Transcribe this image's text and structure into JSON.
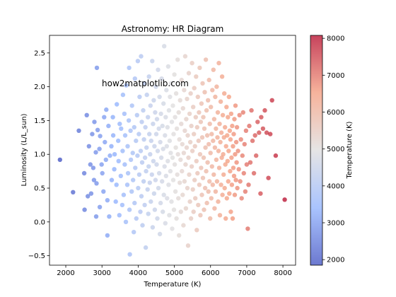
{
  "chart_data": {
    "type": "scatter",
    "title": "Astronomy: HR Diagram",
    "xlabel": "Temperature (K)",
    "ylabel": "Luminosity (L/L_sun)",
    "xlim": [
      1550,
      8350
    ],
    "ylim": [
      -0.64,
      2.76
    ],
    "xticks": [
      2000,
      3000,
      4000,
      5000,
      6000,
      7000,
      8000
    ],
    "yticks": [
      -0.5,
      0.0,
      0.5,
      1.0,
      1.5,
      2.0,
      2.5
    ],
    "grid": false,
    "annotation": "how2matplotlib.com",
    "colorbar": {
      "label": "Temperature (K)",
      "range": [
        1850,
        8080
      ],
      "ticks": [
        2000,
        3000,
        4000,
        5000,
        6000,
        7000,
        8000
      ],
      "colormap": "coolwarm",
      "stops": [
        "#3b4cc0",
        "#8db0fe",
        "#dddcdc",
        "#f49a7b",
        "#b40426"
      ],
      "alpha": 0.75
    },
    "points": [
      [
        1840,
        0.92
      ],
      [
        2200,
        0.44
      ],
      [
        2360,
        1.35
      ],
      [
        2510,
        0.72
      ],
      [
        2520,
        0.18
      ],
      [
        2580,
        1.58
      ],
      [
        2610,
        0.38
      ],
      [
        2640,
        1.12
      ],
      [
        2680,
        0.85
      ],
      [
        2700,
        0.42
      ],
      [
        2730,
        1.3
      ],
      [
        2760,
        0.8
      ],
      [
        2780,
        0.62
      ],
      [
        2790,
        1.48
      ],
      [
        2830,
        1.03
      ],
      [
        2840,
        0.08
      ],
      [
        2850,
        0.57
      ],
      [
        2860,
        2.28
      ],
      [
        2880,
        1.36
      ],
      [
        2930,
        1.08
      ],
      [
        2940,
        0.22
      ],
      [
        2950,
        1.27
      ],
      [
        2990,
        0.85
      ],
      [
        3010,
        0.72
      ],
      [
        3040,
        0.45
      ],
      [
        3060,
        1.55
      ],
      [
        3080,
        1.18
      ],
      [
        3110,
        0.92
      ],
      [
        3120,
        1.66
      ],
      [
        3150,
        0.32
      ],
      [
        3150,
        -0.2
      ],
      [
        3180,
        1.42
      ],
      [
        3200,
        0.08
      ],
      [
        3220,
        0.98
      ],
      [
        3260,
        1.12
      ],
      [
        3270,
        0.62
      ],
      [
        3300,
        1.55
      ],
      [
        3310,
        1.28
      ],
      [
        3340,
        0.78
      ],
      [
        3350,
        1.0
      ],
      [
        3380,
        0.3
      ],
      [
        3400,
        0.55
      ],
      [
        3410,
        1.74
      ],
      [
        3450,
        1.2
      ],
      [
        3460,
        0.9
      ],
      [
        3480,
        0.1
      ],
      [
        3490,
        1.45
      ],
      [
        3520,
        0.68
      ],
      [
        3530,
        1.38
      ],
      [
        3560,
        0.25
      ],
      [
        3570,
        1.05
      ],
      [
        3580,
        1.88
      ],
      [
        3600,
        0.4
      ],
      [
        3620,
        1.6
      ],
      [
        3630,
        0.85
      ],
      [
        3640,
        1.28
      ],
      [
        3660,
        0.0
      ],
      [
        3670,
        2.02
      ],
      [
        3700,
        0.55
      ],
      [
        3710,
        1.12
      ],
      [
        3720,
        0.72
      ],
      [
        3740,
        1.5
      ],
      [
        3750,
        2.28
      ],
      [
        3760,
        0.18
      ],
      [
        3770,
        -0.48
      ],
      [
        3790,
        1.35
      ],
      [
        3800,
        0.92
      ],
      [
        3820,
        0.45
      ],
      [
        3830,
        1.72
      ],
      [
        3850,
        1.02
      ],
      [
        3860,
        0.62
      ],
      [
        3880,
        -0.15
      ],
      [
        3890,
        1.4
      ],
      [
        3900,
        0.28
      ],
      [
        3910,
        2.12
      ],
      [
        3920,
        0.8
      ],
      [
        3940,
        1.2
      ],
      [
        3950,
        0.05
      ],
      [
        3970,
        1.58
      ],
      [
        3980,
        0.98
      ],
      [
        3990,
        2.38
      ],
      [
        4000,
        0.5
      ],
      [
        4020,
        1.3
      ],
      [
        4030,
        0.7
      ],
      [
        4040,
        1.85
      ],
      [
        4060,
        0.15
      ],
      [
        4070,
        1.05
      ],
      [
        4080,
        2.45
      ],
      [
        4090,
        0.38
      ],
      [
        4100,
        1.48
      ],
      [
        4110,
        0.88
      ],
      [
        4120,
        -0.05
      ],
      [
        4140,
        1.65
      ],
      [
        4150,
        0.6
      ],
      [
        4160,
        1.22
      ],
      [
        4170,
        2.05
      ],
      [
        4180,
        0.25
      ],
      [
        4190,
        0.95
      ],
      [
        4200,
        1.4
      ],
      [
        4210,
        -0.38
      ],
      [
        4220,
        0.75
      ],
      [
        4230,
        1.1
      ],
      [
        4240,
        1.88
      ],
      [
        4260,
        0.48
      ],
      [
        4270,
        1.55
      ],
      [
        4280,
        0.12
      ],
      [
        4290,
        0.82
      ],
      [
        4300,
        2.15
      ],
      [
        4310,
        1.3
      ],
      [
        4320,
        0.58
      ],
      [
        4330,
        1.0
      ],
      [
        4340,
        1.72
      ],
      [
        4350,
        0.3
      ],
      [
        4360,
        1.2
      ],
      [
        4380,
        0.7
      ],
      [
        4390,
        2.38
      ],
      [
        4400,
        -0.08
      ],
      [
        4410,
        1.45
      ],
      [
        4420,
        0.9
      ],
      [
        4430,
        1.8
      ],
      [
        4440,
        0.42
      ],
      [
        4450,
        1.12
      ],
      [
        4460,
        0.18
      ],
      [
        4470,
        1.62
      ],
      [
        4480,
        0.62
      ],
      [
        4490,
        2.0
      ],
      [
        4500,
        1.3
      ],
      [
        4510,
        0.85
      ],
      [
        4520,
        1.52
      ],
      [
        4530,
        0.05
      ],
      [
        4540,
        1.05
      ],
      [
        4550,
        2.25
      ],
      [
        4560,
        0.5
      ],
      [
        4570,
        1.38
      ],
      [
        4580,
        0.72
      ],
      [
        4590,
        1.85
      ],
      [
        4600,
        -0.18
      ],
      [
        4610,
        1.18
      ],
      [
        4620,
        0.28
      ],
      [
        4630,
        1.6
      ],
      [
        4640,
        0.95
      ],
      [
        4650,
        2.12
      ],
      [
        4660,
        0.6
      ],
      [
        4670,
        1.42
      ],
      [
        4680,
        0.15
      ],
      [
        4690,
        1.08
      ],
      [
        4700,
        1.75
      ],
      [
        4710,
        0.4
      ],
      [
        4720,
        2.6
      ],
      [
        4730,
        0.82
      ],
      [
        4740,
        1.28
      ],
      [
        4750,
        -0.02
      ],
      [
        4760,
        1.55
      ],
      [
        4770,
        0.68
      ],
      [
        4780,
        1.95
      ],
      [
        4790,
        1.12
      ],
      [
        4800,
        0.35
      ],
      [
        4810,
        1.4
      ],
      [
        4820,
        0.9
      ],
      [
        4830,
        2.3
      ],
      [
        4840,
        0.55
      ],
      [
        4850,
        1.65
      ],
      [
        4860,
        0.1
      ],
      [
        4870,
        1.2
      ],
      [
        4880,
        1.85
      ],
      [
        4890,
        0.75
      ],
      [
        4900,
        1.02
      ],
      [
        4910,
        2.05
      ],
      [
        4920,
        0.3
      ],
      [
        4930,
        1.48
      ],
      [
        4940,
        -0.1
      ],
      [
        4950,
        0.95
      ],
      [
        4960,
        1.72
      ],
      [
        4970,
        0.62
      ],
      [
        4980,
        1.3
      ],
      [
        4990,
        0.18
      ],
      [
        5000,
        2.18
      ],
      [
        5010,
        0.85
      ],
      [
        5020,
        1.55
      ],
      [
        5030,
        0.45
      ],
      [
        5040,
        1.1
      ],
      [
        5050,
        1.9
      ],
      [
        5060,
        0.05
      ],
      [
        5070,
        1.38
      ],
      [
        5080,
        0.7
      ],
      [
        5090,
        2.4
      ],
      [
        5100,
        1.0
      ],
      [
        5110,
        0.35
      ],
      [
        5120,
        1.62
      ],
      [
        5130,
        -0.2
      ],
      [
        5140,
        1.22
      ],
      [
        5150,
        0.58
      ],
      [
        5160,
        1.8
      ],
      [
        5170,
        0.92
      ],
      [
        5180,
        0.15
      ],
      [
        5190,
        1.45
      ],
      [
        5200,
        2.1
      ],
      [
        5210,
        0.75
      ],
      [
        5220,
        1.15
      ],
      [
        5230,
        0.4
      ],
      [
        5240,
        1.68
      ],
      [
        5250,
        -0.05
      ],
      [
        5260,
        1.02
      ],
      [
        5270,
        1.95
      ],
      [
        5280,
        0.6
      ],
      [
        5290,
        1.35
      ],
      [
        5300,
        2.45
      ],
      [
        5310,
        0.85
      ],
      [
        5320,
        0.2
      ],
      [
        5330,
        1.52
      ],
      [
        5340,
        1.1
      ],
      [
        5350,
        1.82
      ],
      [
        5360,
        0.5
      ],
      [
        5370,
        1.28
      ],
      [
        5380,
        -0.35
      ],
      [
        5390,
        0.95
      ],
      [
        5400,
        2.2
      ],
      [
        5410,
        0.7
      ],
      [
        5420,
        1.6
      ],
      [
        5430,
        0.3
      ],
      [
        5440,
        1.18
      ],
      [
        5450,
        1.9
      ],
      [
        5460,
        0.05
      ],
      [
        5470,
        1.42
      ],
      [
        5480,
        0.82
      ],
      [
        5490,
        2.35
      ],
      [
        5500,
        1.05
      ],
      [
        5510,
        0.48
      ],
      [
        5520,
        1.7
      ],
      [
        5530,
        0.15
      ],
      [
        5540,
        1.3
      ],
      [
        5550,
        1.98
      ],
      [
        5560,
        0.62
      ],
      [
        5570,
        1.12
      ],
      [
        5580,
        0.35
      ],
      [
        5590,
        1.55
      ],
      [
        5600,
        2.15
      ],
      [
        5610,
        0.9
      ],
      [
        5620,
        -0.12
      ],
      [
        5630,
        1.4
      ],
      [
        5640,
        0.72
      ],
      [
        5650,
        1.85
      ],
      [
        5660,
        0.25
      ],
      [
        5670,
        1.2
      ],
      [
        5680,
        1.62
      ],
      [
        5690,
        0.55
      ],
      [
        5700,
        2.28
      ],
      [
        5710,
        1.0
      ],
      [
        5720,
        0.1
      ],
      [
        5730,
        1.48
      ],
      [
        5740,
        0.8
      ],
      [
        5750,
        1.75
      ],
      [
        5760,
        0.4
      ],
      [
        5770,
        1.25
      ],
      [
        5780,
        2.05
      ],
      [
        5790,
        0.65
      ],
      [
        5800,
        1.55
      ],
      [
        5810,
        0.95
      ],
      [
        5820,
        0.18
      ],
      [
        5830,
        1.38
      ],
      [
        5840,
        1.92
      ],
      [
        5850,
        0.5
      ],
      [
        5860,
        1.1
      ],
      [
        5870,
        2.4
      ],
      [
        5880,
        0.75
      ],
      [
        5890,
        1.65
      ],
      [
        5900,
        0.28
      ],
      [
        5910,
        1.28
      ],
      [
        5920,
        0.88
      ],
      [
        5930,
        1.8
      ],
      [
        5940,
        0.45
      ],
      [
        5950,
        1.15
      ],
      [
        5960,
        2.1
      ],
      [
        5970,
        0.6
      ],
      [
        5980,
        1.45
      ],
      [
        5990,
        0.05
      ],
      [
        6000,
        1.02
      ],
      [
        6010,
        1.7
      ],
      [
        6020,
        0.35
      ],
      [
        6030,
        1.3
      ],
      [
        6040,
        0.82
      ],
      [
        6050,
        1.95
      ],
      [
        6060,
        0.55
      ],
      [
        6070,
        1.2
      ],
      [
        6080,
        2.25
      ],
      [
        6090,
        0.7
      ],
      [
        6100,
        1.52
      ],
      [
        6110,
        0.2
      ],
      [
        6120,
        1.1
      ],
      [
        6130,
        1.85
      ],
      [
        6140,
        0.45
      ],
      [
        6150,
        1.38
      ],
      [
        6160,
        0.92
      ],
      [
        6170,
        2.0
      ],
      [
        6180,
        0.6
      ],
      [
        6190,
        1.25
      ],
      [
        6200,
        1.62
      ],
      [
        6210,
        0.3
      ],
      [
        6220,
        1.05
      ],
      [
        6230,
        2.35
      ],
      [
        6240,
        0.8
      ],
      [
        6250,
        1.45
      ],
      [
        6260,
        0.1
      ],
      [
        6270,
        1.18
      ],
      [
        6280,
        1.78
      ],
      [
        6290,
        0.55
      ],
      [
        6300,
        1.32
      ],
      [
        6310,
        0.95
      ],
      [
        6320,
        2.15
      ],
      [
        6330,
        0.4
      ],
      [
        6340,
        1.58
      ],
      [
        6350,
        1.0
      ],
      [
        6360,
        0.7
      ],
      [
        6370,
        1.25
      ],
      [
        6380,
        1.9
      ],
      [
        6390,
        0.5
      ],
      [
        6400,
        1.4
      ],
      [
        6410,
        0.85
      ],
      [
        6420,
        0.05
      ],
      [
        6430,
        1.12
      ],
      [
        6440,
        1.7
      ],
      [
        6450,
        0.35
      ],
      [
        6460,
        1.28
      ],
      [
        6470,
        0.9
      ],
      [
        6480,
        1.55
      ],
      [
        6490,
        0.6
      ],
      [
        6500,
        1.05
      ],
      [
        6510,
        1.85
      ],
      [
        6520,
        0.42
      ],
      [
        6530,
        1.35
      ],
      [
        6540,
        0.75
      ],
      [
        6550,
        1.22
      ],
      [
        6560,
        0.15
      ],
      [
        6570,
        1.6
      ],
      [
        6580,
        0.95
      ],
      [
        6590,
        0.55
      ],
      [
        6600,
        1.42
      ],
      [
        6610,
        0.05
      ],
      [
        6620,
        1.12
      ],
      [
        6630,
        0.8
      ],
      [
        6640,
        1.3
      ],
      [
        6650,
        0.68
      ],
      [
        6660,
        1.52
      ],
      [
        6670,
        0.4
      ],
      [
        6680,
        1.0
      ],
      [
        6690,
        1.72
      ],
      [
        6700,
        0.62
      ],
      [
        6710,
        1.18
      ],
      [
        6720,
        0.88
      ],
      [
        6730,
        1.4
      ],
      [
        6740,
        0.5
      ],
      [
        6760,
        1.05
      ],
      [
        6780,
        0.78
      ],
      [
        6800,
        1.58
      ],
      [
        6820,
        0.6
      ],
      [
        6840,
        1.22
      ],
      [
        6860,
        0.35
      ],
      [
        6880,
        0.98
      ],
      [
        6900,
        1.62
      ],
      [
        6920,
        0.72
      ],
      [
        6940,
        1.15
      ],
      [
        6960,
        0.45
      ],
      [
        6980,
        1.35
      ],
      [
        7000,
        0.85
      ],
      [
        7030,
        -0.1
      ],
      [
        7050,
        0.55
      ],
      [
        7070,
        1.42
      ],
      [
        7100,
        0.88
      ],
      [
        7130,
        1.65
      ],
      [
        7160,
        1.2
      ],
      [
        7200,
        0.72
      ],
      [
        7230,
        1.28
      ],
      [
        7260,
        0.98
      ],
      [
        7300,
        1.48
      ],
      [
        7340,
        1.32
      ],
      [
        7380,
        0.42
      ],
      [
        7400,
        1.55
      ],
      [
        7450,
        1.38
      ],
      [
        7500,
        1.65
      ],
      [
        7550,
        1.32
      ],
      [
        7600,
        0.65
      ],
      [
        7650,
        1.3
      ],
      [
        7700,
        1.8
      ],
      [
        7800,
        0.98
      ],
      [
        8050,
        0.33
      ]
    ]
  }
}
